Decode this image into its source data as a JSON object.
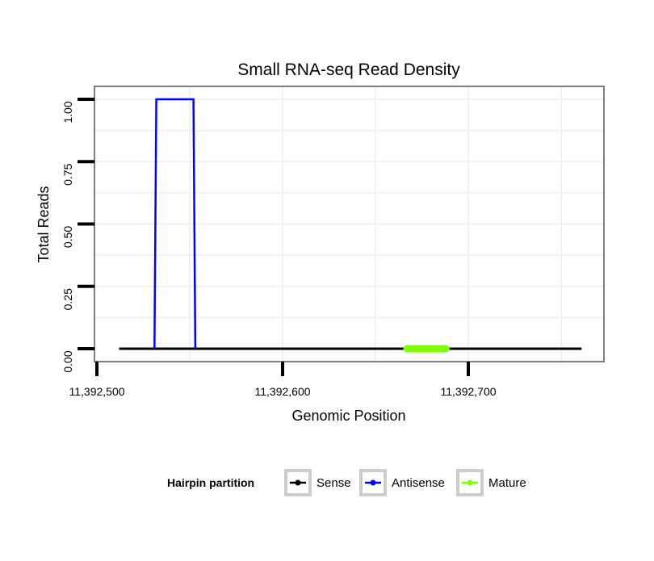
{
  "chart_data": {
    "type": "line",
    "title": "Small RNA-seq Read Density",
    "xlabel": "Genomic Position",
    "ylabel": "Total Reads",
    "xlim": [
      11392500,
      11392770
    ],
    "ylim": [
      0,
      1.05
    ],
    "x_ticks": [
      11392500,
      11392600,
      11392700
    ],
    "x_tick_labels": [
      "11,392,500",
      "11,392,600",
      "11,392,700"
    ],
    "y_ticks": [
      0,
      0.25,
      0.5,
      0.75,
      1.0
    ],
    "y_tick_labels": [
      "0.00",
      "0.25",
      "0.50",
      "0.75",
      "1.00"
    ],
    "grid": true,
    "legend": {
      "title": "Hairpin partition",
      "placement": "bottom",
      "entries": [
        "Sense",
        "Antisense",
        "Mature"
      ]
    },
    "series": [
      {
        "name": "Sense",
        "color": "#000000",
        "points": [
          [
            11392512,
            0
          ],
          [
            11392761,
            0
          ]
        ]
      },
      {
        "name": "Antisense",
        "color": "#0000ff",
        "points": [
          [
            11392531,
            0
          ],
          [
            11392532,
            1
          ],
          [
            11392552,
            1
          ],
          [
            11392553,
            0
          ]
        ]
      },
      {
        "name": "Mature",
        "color": "#7fff00",
        "points": [
          [
            11392667,
            0
          ],
          [
            11392688,
            0
          ]
        ]
      }
    ]
  }
}
